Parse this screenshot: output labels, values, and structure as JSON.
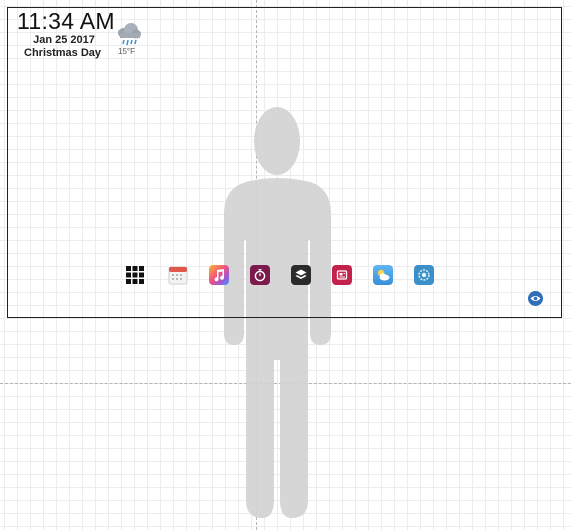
{
  "status": {
    "time": "11:34 AM",
    "date": "Jan 25 2017",
    "holiday": "Christmas Day",
    "temperature": "15°F",
    "weather_icon": "rain-cloud-icon"
  },
  "dock": {
    "apps": [
      {
        "name": "app-grid-icon"
      },
      {
        "name": "calendar-icon"
      },
      {
        "name": "music-icon"
      },
      {
        "name": "timer-icon"
      },
      {
        "name": "layers-app-icon"
      },
      {
        "name": "news-icon"
      },
      {
        "name": "weather-app-icon"
      },
      {
        "name": "settings-icon"
      }
    ]
  },
  "colors": {
    "frame": "#222222",
    "figure": "#d3d3d3",
    "accent_blue": "#2f6fb8"
  }
}
